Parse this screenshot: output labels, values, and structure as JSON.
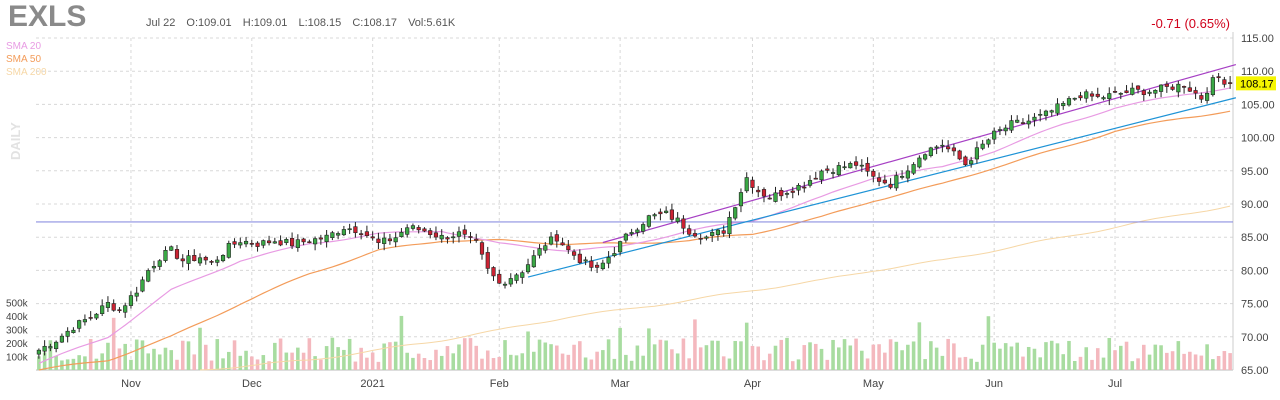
{
  "header": {
    "ticker": "EXLS",
    "date": "Jul 22",
    "open": "O:109.01",
    "high": "H:109.01",
    "low": "L:108.15",
    "close": "C:108.17",
    "volume": "Vol:5.61K",
    "change": "-0.71 (0.65%)",
    "timeframe": "DAILY"
  },
  "legend": [
    {
      "label": "SMA 20",
      "color": "#e89be3"
    },
    {
      "label": "SMA 50",
      "color": "#f39c5a"
    },
    {
      "label": "SMA 200",
      "color": "#f6d7a6"
    }
  ],
  "colors": {
    "up": "#3aa845",
    "down": "#cc2233",
    "vol_up": "#a8dca0",
    "vol_down": "#f4b8be",
    "trend_upper": "#a63fc4",
    "trend_lower": "#1e93d6",
    "horizontal": "#8e90e0",
    "last_price_bg": "#f5f500"
  },
  "chart_data": {
    "type": "candlestick",
    "ylim": [
      65,
      115
    ],
    "y_ticks": [
      "65.00",
      "70.00",
      "75.00",
      "80.00",
      "85.00",
      "90.00",
      "95.00",
      "100.00",
      "105.00",
      "110.00",
      "115.00"
    ],
    "y_tick_values": [
      65,
      70,
      75,
      80,
      85,
      90,
      95,
      100,
      105,
      110,
      115
    ],
    "x_labels": [
      "Nov",
      "Dec",
      "2021",
      "Feb",
      "Mar",
      "Apr",
      "May",
      "Jun",
      "Jul"
    ],
    "x_label_index": [
      16,
      37,
      58,
      80,
      101,
      124,
      145,
      166,
      187
    ],
    "volume_ticks": [
      "100k",
      "200k",
      "300k",
      "400k",
      "500k"
    ],
    "volume_tick_values": [
      100000,
      200000,
      300000,
      400000,
      500000
    ],
    "last_price": "108.17",
    "last_price_value": 108.17,
    "horizontal_line": 87.3,
    "trendline_upper": [
      [
        98,
        84.2
      ],
      [
        208,
        111.0
      ]
    ],
    "trendline_lower": [
      [
        85,
        79.0
      ],
      [
        208,
        106.0
      ]
    ],
    "n_bars": 208,
    "close_anchors": [
      [
        0,
        68.0
      ],
      [
        3,
        69.5
      ],
      [
        6,
        71.5
      ],
      [
        9,
        73.0
      ],
      [
        12,
        75.0
      ],
      [
        14,
        74.0
      ],
      [
        17,
        77.0
      ],
      [
        19,
        80.0
      ],
      [
        21,
        82.0
      ],
      [
        23,
        83.0
      ],
      [
        25,
        81.5
      ],
      [
        28,
        82.0
      ],
      [
        30,
        81.0
      ],
      [
        33,
        83.5
      ],
      [
        35,
        84.5
      ],
      [
        38,
        84.0
      ],
      [
        41,
        84.5
      ],
      [
        44,
        84.0
      ],
      [
        47,
        84.5
      ],
      [
        50,
        85.0
      ],
      [
        53,
        86.5
      ],
      [
        56,
        86.0
      ],
      [
        59,
        84.0
      ],
      [
        62,
        85.0
      ],
      [
        64,
        86.5
      ],
      [
        67,
        86.0
      ],
      [
        70,
        85.0
      ],
      [
        73,
        85.5
      ],
      [
        76,
        84.0
      ],
      [
        78,
        80.0
      ],
      [
        80,
        78.0
      ],
      [
        82,
        79.0
      ],
      [
        84,
        80.0
      ],
      [
        86,
        82.0
      ],
      [
        88,
        84.0
      ],
      [
        90,
        85.0
      ],
      [
        92,
        83.0
      ],
      [
        95,
        81.0
      ],
      [
        97,
        80.0
      ],
      [
        99,
        82.0
      ],
      [
        101,
        84.0
      ],
      [
        103,
        86.0
      ],
      [
        106,
        88.0
      ],
      [
        109,
        88.5
      ],
      [
        111,
        87.5
      ],
      [
        113,
        86.0
      ],
      [
        116,
        85.0
      ],
      [
        119,
        86.0
      ],
      [
        121,
        90.0
      ],
      [
        123,
        94.0
      ],
      [
        125,
        92.0
      ],
      [
        127,
        91.0
      ],
      [
        130,
        92.0
      ],
      [
        133,
        93.0
      ],
      [
        136,
        95.0
      ],
      [
        139,
        95.5
      ],
      [
        142,
        96.0
      ],
      [
        145,
        94.0
      ],
      [
        148,
        93.0
      ],
      [
        151,
        95.5
      ],
      [
        154,
        98.0
      ],
      [
        157,
        99.0
      ],
      [
        159,
        97.5
      ],
      [
        161,
        96.0
      ],
      [
        163,
        98.0
      ],
      [
        166,
        100.5
      ],
      [
        169,
        102.0
      ],
      [
        172,
        102.5
      ],
      [
        175,
        103.5
      ],
      [
        178,
        105.0
      ],
      [
        181,
        106.5
      ],
      [
        184,
        106.0
      ],
      [
        187,
        106.5
      ],
      [
        190,
        107.0
      ],
      [
        193,
        107.0
      ],
      [
        196,
        107.5
      ],
      [
        199,
        108.0
      ],
      [
        202,
        106.0
      ],
      [
        204,
        108.5
      ],
      [
        205,
        109.0
      ],
      [
        207,
        108.17
      ]
    ],
    "sma20_anchors": [
      [
        0,
        66.0
      ],
      [
        12,
        70.0
      ],
      [
        23,
        77.0
      ],
      [
        35,
        81.5
      ],
      [
        47,
        84.0
      ],
      [
        59,
        85.5
      ],
      [
        70,
        86.0
      ],
      [
        80,
        84.0
      ],
      [
        92,
        83.0
      ],
      [
        101,
        83.5
      ],
      [
        113,
        86.0
      ],
      [
        124,
        87.5
      ],
      [
        136,
        91.0
      ],
      [
        145,
        94.0
      ],
      [
        157,
        95.5
      ],
      [
        166,
        98.0
      ],
      [
        178,
        102.0
      ],
      [
        187,
        104.5
      ],
      [
        199,
        106.5
      ],
      [
        207,
        107.5
      ]
    ],
    "sma50_anchors": [
      [
        0,
        65.0
      ],
      [
        12,
        66.5
      ],
      [
        23,
        70.0
      ],
      [
        35,
        75.0
      ],
      [
        47,
        79.5
      ],
      [
        59,
        83.0
      ],
      [
        70,
        84.5
      ],
      [
        80,
        84.5
      ],
      [
        92,
        84.0
      ],
      [
        101,
        84.0
      ],
      [
        113,
        84.5
      ],
      [
        124,
        85.5
      ],
      [
        136,
        88.0
      ],
      [
        145,
        90.5
      ],
      [
        157,
        93.0
      ],
      [
        166,
        95.5
      ],
      [
        178,
        98.5
      ],
      [
        187,
        101.0
      ],
      [
        199,
        103.0
      ],
      [
        207,
        104.0
      ]
    ],
    "sma200_anchors": [
      [
        28,
        65.0
      ],
      [
        47,
        66.5
      ],
      [
        59,
        68.0
      ],
      [
        70,
        69.5
      ],
      [
        80,
        71.0
      ],
      [
        92,
        73.0
      ],
      [
        101,
        74.0
      ],
      [
        113,
        75.5
      ],
      [
        124,
        77.0
      ],
      [
        136,
        78.5
      ],
      [
        145,
        80.0
      ],
      [
        157,
        81.5
      ],
      [
        166,
        83.0
      ],
      [
        178,
        85.0
      ],
      [
        187,
        86.5
      ],
      [
        199,
        88.5
      ],
      [
        207,
        89.7
      ]
    ],
    "volume_seed": 7
  }
}
